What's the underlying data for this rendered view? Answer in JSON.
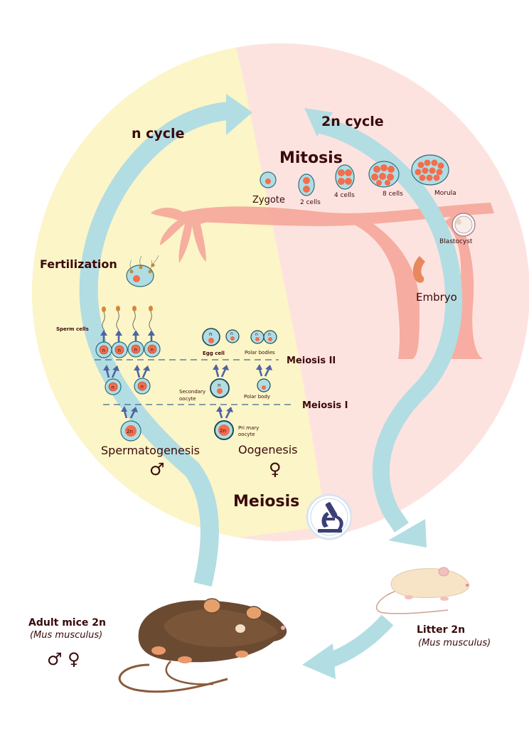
{
  "labels": {
    "n_cycle": "n cycle",
    "two_n_cycle": "2n cycle",
    "mitosis": "Mitosis",
    "meiosis": "Meiosis",
    "fertilization": "Fertilization",
    "zygote": "Zygote",
    "two_cells": "2 cells",
    "four_cells": "4 cells",
    "eight_cells": "8 cells",
    "morula": "Morula",
    "blastocyst": "Blastocyst",
    "embryo": "Embryo",
    "sperm_cells": "Sperm cells",
    "egg_cell": "Egg cell",
    "polar_bodies": "Polar bodies",
    "polar_body": "Polar body",
    "secondary_oocyte_1": "Secondary",
    "secondary_oocyte_2": "oocyte",
    "primary_oocyte_1": "Pri mary",
    "primary_oocyte_2": "oocyte",
    "meiosis_2": "Meiosis II",
    "meiosis_1": "Meiosis I",
    "spermatogenesis": "Spermatogenesis",
    "oogenesis": "Oogenesis",
    "male_symbol": "♂",
    "female_symbol": "♀",
    "adult_mice": "Adult mice  2n",
    "adult_species": "(Mus musculus)",
    "adult_symbols": "♂  ♀",
    "litter": "Litter  2n",
    "litter_species": "(Mus musculus)"
  },
  "cell_ploidy": {
    "n": "n",
    "two_n": "2n"
  },
  "colors": {
    "n_cycle_bg": "#fcf5c7",
    "two_n_cycle_bg": "#fde3e0",
    "cycle_arrow": "#b2dde3",
    "uterus": "#f6a89b",
    "cell_outer": "#b0dde4",
    "nucleus": "#f26e4e",
    "step_arrow": "#4f63a0",
    "label_text": "#3a0a0a"
  }
}
